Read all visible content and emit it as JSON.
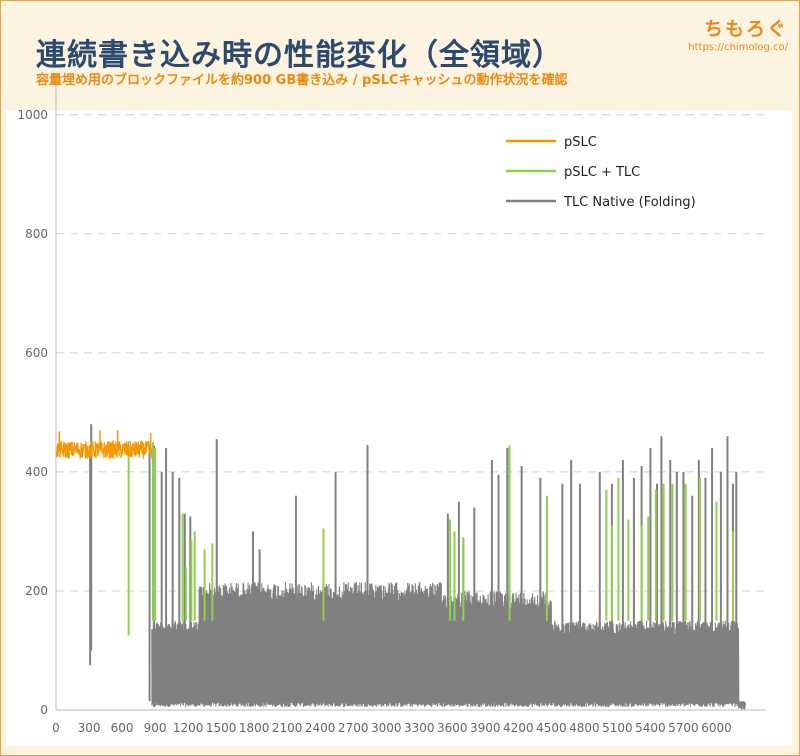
{
  "header": {
    "title": "連続書き込み時の性能変化（全領域）",
    "subtitle": "容量埋め用のブロックファイルを約900 GB書き込み / pSLCキャッシュの動作状況を確認",
    "brand": "ちもろぐ",
    "brand_url": "https://chimolog.co/"
  },
  "chart_data": {
    "type": "line",
    "title": "連続書き込み時の性能変化（全領域）",
    "subtitle": "容量埋め用のブロックファイルを約900 GB書き込み / pSLCキャッシュの動作状況を確認",
    "xlim": [
      0,
      6450
    ],
    "ylim": [
      0,
      1050
    ],
    "x_ticks": [
      0,
      300,
      600,
      900,
      1200,
      1500,
      1800,
      2100,
      2400,
      2700,
      3000,
      3300,
      3600,
      3900,
      4200,
      4500,
      4800,
      5100,
      5400,
      5700,
      6000
    ],
    "y_ticks": [
      0,
      200,
      400,
      600,
      800,
      1000
    ],
    "grid": "horizontal-dashed",
    "legend_position": "top-right",
    "series": [
      {
        "name": "pSLC",
        "color": "#f39800",
        "segments": [
          {
            "x_start": 0,
            "x_end": 870,
            "level": 437,
            "spread": 15,
            "notes": "steady ~420-465"
          }
        ],
        "spikes": [
          [
            30,
            468
          ],
          [
            400,
            470
          ],
          [
            560,
            470
          ],
          [
            860,
            465
          ]
        ]
      },
      {
        "name": "pSLC + TLC",
        "color": "#8fd14f",
        "spikes": [
          [
            660,
            125
          ],
          [
            880,
            450
          ],
          [
            900,
            440
          ],
          [
            1150,
            330
          ],
          [
            1180,
            240
          ],
          [
            1230,
            285
          ],
          [
            1260,
            300
          ],
          [
            1350,
            270
          ],
          [
            1420,
            280
          ],
          [
            1630,
            150
          ],
          [
            2430,
            305
          ],
          [
            3580,
            320
          ],
          [
            3620,
            300
          ],
          [
            3700,
            290
          ],
          [
            4120,
            445
          ],
          [
            4170,
            150
          ],
          [
            4460,
            360
          ],
          [
            5000,
            370
          ],
          [
            5050,
            310
          ],
          [
            5110,
            390
          ],
          [
            5200,
            320
          ],
          [
            5320,
            310
          ],
          [
            5380,
            325
          ],
          [
            5450,
            370
          ],
          [
            5520,
            380
          ],
          [
            5600,
            380
          ],
          [
            5720,
            380
          ],
          [
            5850,
            390
          ],
          [
            6000,
            350
          ],
          [
            6150,
            300
          ]
        ]
      },
      {
        "name": "TLC Native (Folding)",
        "color": "#808080",
        "dips": [
          [
            310,
            75
          ],
          [
            850,
            15
          ],
          [
            890,
            5
          ]
        ],
        "segments": [
          {
            "x_start": 870,
            "x_end": 1300,
            "low": 5,
            "high": 150
          },
          {
            "x_start": 1300,
            "x_end": 3500,
            "low": 5,
            "high": 215
          },
          {
            "x_start": 3500,
            "x_end": 4500,
            "low": 5,
            "high": 200
          },
          {
            "x_start": 4500,
            "x_end": 6200,
            "low": 5,
            "high": 150
          },
          {
            "x_start": 6200,
            "x_end": 6260,
            "low": 0,
            "high": 15
          }
        ],
        "spikes": [
          [
            320,
            480
          ],
          [
            890,
            445
          ],
          [
            960,
            400
          ],
          [
            1000,
            440
          ],
          [
            1060,
            400
          ],
          [
            1120,
            390
          ],
          [
            1170,
            330
          ],
          [
            1220,
            325
          ],
          [
            1460,
            455
          ],
          [
            1790,
            300
          ],
          [
            1850,
            270
          ],
          [
            2180,
            360
          ],
          [
            2540,
            400
          ],
          [
            2830,
            445
          ],
          [
            3560,
            330
          ],
          [
            3660,
            350
          ],
          [
            3700,
            290
          ],
          [
            3800,
            340
          ],
          [
            3960,
            420
          ],
          [
            4020,
            395
          ],
          [
            4100,
            440
          ],
          [
            4230,
            410
          ],
          [
            4400,
            390
          ],
          [
            4600,
            380
          ],
          [
            4680,
            420
          ],
          [
            4760,
            380
          ],
          [
            4940,
            400
          ],
          [
            5050,
            380
          ],
          [
            5150,
            420
          ],
          [
            5250,
            390
          ],
          [
            5320,
            410
          ],
          [
            5400,
            440
          ],
          [
            5460,
            380
          ],
          [
            5500,
            460
          ],
          [
            5580,
            420
          ],
          [
            5640,
            400
          ],
          [
            5700,
            400
          ],
          [
            5780,
            360
          ],
          [
            5840,
            420
          ],
          [
            5900,
            390
          ],
          [
            5960,
            440
          ],
          [
            6040,
            400
          ],
          [
            6100,
            460
          ],
          [
            6150,
            380
          ],
          [
            6180,
            400
          ]
        ]
      }
    ]
  }
}
